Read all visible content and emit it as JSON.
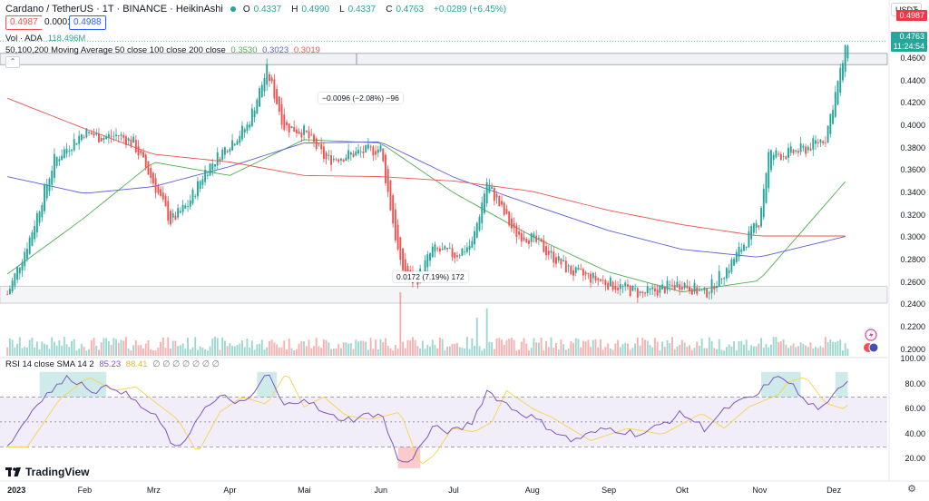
{
  "header": {
    "title": "Cardano / TetherUS · 1T · BINANCE · HeikinAshi",
    "o_label": "O",
    "o_value": "0.4337",
    "h_label": "H",
    "h_value": "0.4990",
    "l_label": "L",
    "l_value": "0.4337",
    "c_label": "C",
    "c_value": "0.4763",
    "change": "+0.0289 (+6.45%)"
  },
  "quote": {
    "sell": "0.4987",
    "spread": "0.0001",
    "buy": "0.4988"
  },
  "indicators": {
    "vol_label": "Vol · ADA",
    "vol_value": "118.496M",
    "ma_label": "50,100,200 Moving Average 50 close 100 close 200 close",
    "ma50": "0.3530",
    "ma100": "0.3023",
    "ma200": "0.3019",
    "rsi_label": "RSI 14 close SMA 14 2",
    "rsi_value": "85.23",
    "rsi_sma": "88.41",
    "rsi_na": "∅ ∅ ∅ ∅ ∅ ∅ ∅"
  },
  "currency": "USDT",
  "price_axis": [
    "0.4800",
    "0.4600",
    "0.4400",
    "0.4200",
    "0.4000",
    "0.3800",
    "0.3600",
    "0.3400",
    "0.3200",
    "0.3000",
    "0.2800",
    "0.2600",
    "0.2400",
    "0.2200",
    "0.2000"
  ],
  "rsi_axis": [
    "100.00",
    "80.00",
    "60.00",
    "40.00",
    "20.00"
  ],
  "price_tags": {
    "high": "0.4987",
    "last": "0.4763",
    "countdown": "11:24:54"
  },
  "time_axis": [
    "2023",
    "Feb",
    "Mrz",
    "Apr",
    "Mai",
    "Jun",
    "Jul",
    "Aug",
    "Sep",
    "Okt",
    "Nov",
    "Dez"
  ],
  "measure_top": "−0.0096 (−2.08%) −96",
  "measure_bottom": "0.0172 (7.19%) 172",
  "logo": "TradingView",
  "colors": {
    "up": "#26a69a",
    "down": "#ef5350",
    "ma50": "#4caf50",
    "ma100": "#5b5fd9",
    "ma200": "#ef5350",
    "rsi": "#7e57c2",
    "rsi_sma": "#f5d34b"
  },
  "chart_data": {
    "type": "candlestick",
    "title": "Cardano / TetherUS · 1T · BINANCE · HeikinAshi",
    "y_range": [
      0.195,
      0.49
    ],
    "anchor_closes": [
      [
        "2023-01-01",
        0.25
      ],
      [
        "2023-01-10",
        0.3
      ],
      [
        "2023-01-20",
        0.37
      ],
      [
        "2023-02-01",
        0.395
      ],
      [
        "2023-02-08",
        0.39
      ],
      [
        "2023-02-15",
        0.392
      ],
      [
        "2023-02-21",
        0.385
      ],
      [
        "2023-03-01",
        0.35
      ],
      [
        "2023-03-08",
        0.315
      ],
      [
        "2023-03-15",
        0.33
      ],
      [
        "2023-03-22",
        0.36
      ],
      [
        "2023-04-01",
        0.385
      ],
      [
        "2023-04-08",
        0.4
      ],
      [
        "2023-04-16",
        0.45
      ],
      [
        "2023-04-23",
        0.4
      ],
      [
        "2023-05-01",
        0.395
      ],
      [
        "2023-05-10",
        0.37
      ],
      [
        "2023-05-20",
        0.375
      ],
      [
        "2023-06-01",
        0.38
      ],
      [
        "2023-06-09",
        0.275
      ],
      [
        "2023-06-15",
        0.26
      ],
      [
        "2023-06-22",
        0.29
      ],
      [
        "2023-07-01",
        0.285
      ],
      [
        "2023-07-08",
        0.295
      ],
      [
        "2023-07-14",
        0.35
      ],
      [
        "2023-07-25",
        0.305
      ],
      [
        "2023-08-01",
        0.3
      ],
      [
        "2023-08-17",
        0.27
      ],
      [
        "2023-09-01",
        0.26
      ],
      [
        "2023-09-15",
        0.25
      ],
      [
        "2023-10-01",
        0.26
      ],
      [
        "2023-10-10",
        0.25
      ],
      [
        "2023-10-20",
        0.275
      ],
      [
        "2023-11-01",
        0.315
      ],
      [
        "2023-11-05",
        0.375
      ],
      [
        "2023-11-12",
        0.375
      ],
      [
        "2023-11-20",
        0.38
      ],
      [
        "2023-11-28",
        0.39
      ],
      [
        "2023-12-01",
        0.42
      ],
      [
        "2023-12-07",
        0.476
      ]
    ],
    "ma50": [
      [
        "2023-01-01",
        0.268
      ],
      [
        "2023-02-01",
        0.318
      ],
      [
        "2023-03-01",
        0.368
      ],
      [
        "2023-04-01",
        0.356
      ],
      [
        "2023-05-01",
        0.388
      ],
      [
        "2023-06-01",
        0.385
      ],
      [
        "2023-07-01",
        0.34
      ],
      [
        "2023-08-01",
        0.302
      ],
      [
        "2023-09-01",
        0.27
      ],
      [
        "2023-10-01",
        0.252
      ],
      [
        "2023-11-01",
        0.262
      ],
      [
        "2023-12-07",
        0.353
      ]
    ],
    "ma100": [
      [
        "2023-01-01",
        0.355
      ],
      [
        "2023-02-01",
        0.34
      ],
      [
        "2023-03-01",
        0.346
      ],
      [
        "2023-04-01",
        0.364
      ],
      [
        "2023-05-01",
        0.385
      ],
      [
        "2023-06-01",
        0.386
      ],
      [
        "2023-07-01",
        0.354
      ],
      [
        "2023-08-01",
        0.33
      ],
      [
        "2023-09-01",
        0.307
      ],
      [
        "2023-10-01",
        0.29
      ],
      [
        "2023-11-01",
        0.283
      ],
      [
        "2023-12-07",
        0.302
      ]
    ],
    "ma200": [
      [
        "2023-01-01",
        0.425
      ],
      [
        "2023-02-01",
        0.398
      ],
      [
        "2023-03-01",
        0.375
      ],
      [
        "2023-04-01",
        0.368
      ],
      [
        "2023-05-01",
        0.356
      ],
      [
        "2023-06-01",
        0.355
      ],
      [
        "2023-07-01",
        0.351
      ],
      [
        "2023-08-01",
        0.342
      ],
      [
        "2023-09-01",
        0.325
      ],
      [
        "2023-10-01",
        0.312
      ],
      [
        "2023-11-01",
        0.302
      ],
      [
        "2023-12-07",
        0.302
      ]
    ],
    "rsi": [
      [
        "2023-01-01",
        30
      ],
      [
        "2023-01-14",
        68
      ],
      [
        "2023-01-26",
        86
      ],
      [
        "2023-02-05",
        75
      ],
      [
        "2023-02-14",
        78
      ],
      [
        "2023-02-23",
        64
      ],
      [
        "2023-03-03",
        52
      ],
      [
        "2023-03-11",
        25
      ],
      [
        "2023-03-20",
        58
      ],
      [
        "2023-03-29",
        70
      ],
      [
        "2023-04-08",
        64
      ],
      [
        "2023-04-16",
        90
      ],
      [
        "2023-04-23",
        62
      ],
      [
        "2023-05-01",
        70
      ],
      [
        "2023-05-10",
        55
      ],
      [
        "2023-05-20",
        52
      ],
      [
        "2023-06-01",
        58
      ],
      [
        "2023-06-09",
        15
      ],
      [
        "2023-06-15",
        24
      ],
      [
        "2023-06-22",
        45
      ],
      [
        "2023-07-01",
        42
      ],
      [
        "2023-07-08",
        50
      ],
      [
        "2023-07-14",
        75
      ],
      [
        "2023-07-25",
        60
      ],
      [
        "2023-08-01",
        54
      ],
      [
        "2023-08-17",
        35
      ],
      [
        "2023-09-01",
        45
      ],
      [
        "2023-09-15",
        40
      ],
      [
        "2023-10-01",
        57
      ],
      [
        "2023-10-10",
        45
      ],
      [
        "2023-10-20",
        62
      ],
      [
        "2023-11-01",
        72
      ],
      [
        "2023-11-05",
        82
      ],
      [
        "2023-11-12",
        86
      ],
      [
        "2023-11-20",
        65
      ],
      [
        "2023-11-28",
        60
      ],
      [
        "2023-12-01",
        70
      ],
      [
        "2023-12-07",
        85
      ]
    ],
    "rsi_range": [
      10,
      100
    ],
    "rsi_band": [
      30,
      70
    ],
    "volume_peaks": [
      [
        "2023-06-09",
        1.0
      ],
      [
        "2023-07-14",
        0.75
      ],
      [
        "2023-07-10",
        0.6
      ]
    ],
    "volume_range": [
      0,
      1
    ],
    "x_ticks": [
      "2023",
      "Feb",
      "Mrz",
      "Apr",
      "Mai",
      "Jun",
      "Jul",
      "Aug",
      "Sep",
      "Okt",
      "Nov",
      "Dez"
    ],
    "x_tick_dates": [
      "2023-01-01",
      "2023-02-01",
      "2023-03-01",
      "2023-04-01",
      "2023-05-01",
      "2023-06-01",
      "2023-07-01",
      "2023-08-01",
      "2023-09-01",
      "2023-10-01",
      "2023-11-01",
      "2023-12-01"
    ],
    "x_range": [
      "2022-12-29",
      "2023-12-23"
    ],
    "legend": "top-left",
    "grid": false
  }
}
